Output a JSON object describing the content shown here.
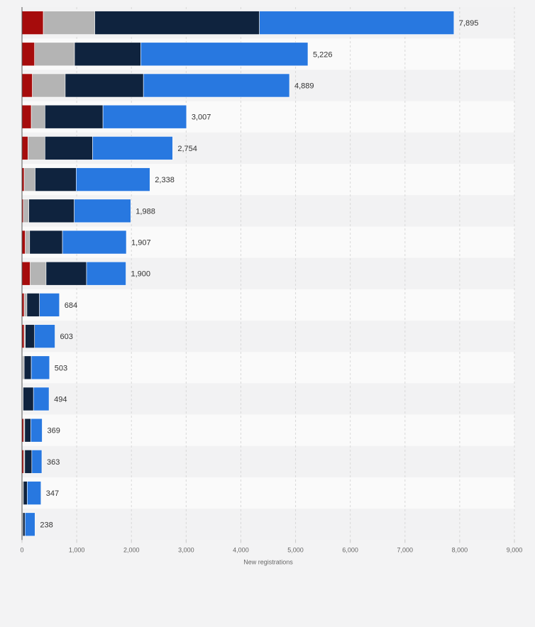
{
  "chart_data": {
    "type": "bar",
    "orientation": "horizontal",
    "stacked": true,
    "title": "",
    "xlabel": "New registrations",
    "ylabel": "",
    "xlim": [
      0,
      9000
    ],
    "x_ticks": [
      0,
      1000,
      2000,
      3000,
      4000,
      5000,
      6000,
      7000,
      8000,
      9000
    ],
    "x_tick_labels": [
      "0",
      "1,000",
      "2,000",
      "3,000",
      "4,000",
      "5,000",
      "6,000",
      "7,000",
      "8,000",
      "9,000"
    ],
    "grid": "vertical dashed",
    "categories": [
      "",
      "",
      "",
      "",
      "",
      "",
      "",
      "",
      "",
      "",
      "",
      "",
      "",
      "",
      "",
      "",
      ""
    ],
    "totals": [
      7895,
      5226,
      4889,
      3007,
      2754,
      2338,
      1988,
      1907,
      1900,
      684,
      603,
      503,
      494,
      369,
      363,
      347,
      238
    ],
    "total_labels": [
      "7,895",
      "5,226",
      "4,889",
      "3,007",
      "2,754",
      "2,338",
      "1,988",
      "1,907",
      "1,900",
      "684",
      "603",
      "503",
      "494",
      "369",
      "363",
      "347",
      "238"
    ],
    "series": [
      {
        "color": "#a60c0c",
        "values": [
          390,
          230,
          190,
          170,
          110,
          40,
          25,
          60,
          150,
          40,
          40,
          10,
          10,
          30,
          30,
          5,
          5
        ]
      },
      {
        "color": "#b4b4b4",
        "values": [
          940,
          730,
          600,
          250,
          310,
          200,
          100,
          80,
          290,
          50,
          20,
          30,
          10,
          20,
          20,
          20,
          10
        ]
      },
      {
        "color": "#0f233e",
        "values": [
          3010,
          1210,
          1430,
          1060,
          870,
          750,
          830,
          600,
          740,
          230,
          170,
          130,
          190,
          110,
          130,
          70,
          40
        ]
      },
      {
        "color": "#2878e0",
        "values": [
          3555,
          3056,
          2669,
          1527,
          1464,
          1348,
          1033,
          1167,
          720,
          364,
          373,
          333,
          284,
          209,
          183,
          252,
          183
        ]
      }
    ]
  }
}
